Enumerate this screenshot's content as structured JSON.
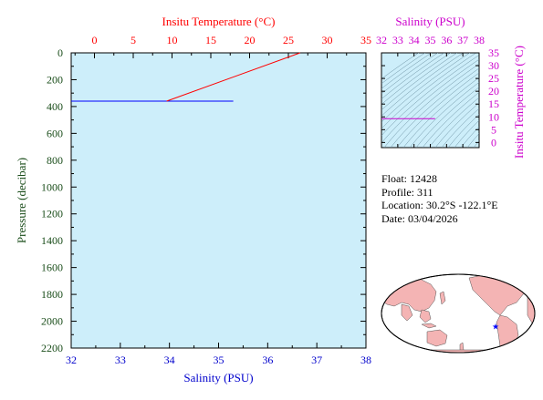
{
  "chart_data": [
    {
      "type": "line",
      "name": "profile",
      "xlabel_bottom": "Salinity (PSU)",
      "xlabel_top": "Insitu Temperature (°C)",
      "ylabel": "Pressure (decibar)",
      "salinity_lim": [
        32,
        38
      ],
      "salinity_ticks": [
        "32",
        "33",
        "34",
        "35",
        "36",
        "37",
        "38"
      ],
      "temperature_lim": [
        -3,
        35
      ],
      "temperature_ticks": [
        "0",
        "5",
        "10",
        "15",
        "20",
        "25",
        "30",
        "35"
      ],
      "pressure_lim": [
        0,
        2200
      ],
      "pressure_ticks": [
        "0",
        "200",
        "400",
        "600",
        "800",
        "1000",
        "1200",
        "1400",
        "1600",
        "1800",
        "2000",
        "2200"
      ],
      "series": [
        {
          "quantity": "salinity",
          "color": "#0000ff",
          "points": [
            [
              32.0,
              360
            ],
            [
              35.3,
              360
            ]
          ]
        },
        {
          "quantity": "temperature",
          "color": "#ff0000",
          "points": [
            [
              26.5,
              0
            ],
            [
              9.3,
              360
            ]
          ]
        }
      ],
      "background": "#cdeefa"
    },
    {
      "type": "line",
      "name": "ts-diagram",
      "xlabel": "Salinity (PSU)",
      "ylabel": "Insitu Temperature (°C)",
      "salinity_lim": [
        32,
        38
      ],
      "salinity_ticks": [
        "32",
        "33",
        "34",
        "35",
        "36",
        "37",
        "38"
      ],
      "temperature_lim": [
        -2,
        35
      ],
      "temperature_ticks": [
        "0",
        "5",
        "10",
        "15",
        "20",
        "25",
        "30",
        "35"
      ],
      "series": [
        {
          "color": "#cc00cc",
          "points": [
            [
              32.0,
              9.3
            ],
            [
              35.3,
              9.3
            ]
          ]
        }
      ]
    }
  ],
  "info": {
    "float": "Float:  12428",
    "profile": "Profile:  311",
    "location": "Location:  30.2°S  -122.1°E",
    "date": "Date:  03/04/2026"
  },
  "map": {
    "float_lon": -122.1,
    "float_lat": -30.2,
    "marker_color": "#0000ff",
    "land_color": "#f4b4b4",
    "ocean_color": "#ffffff"
  }
}
